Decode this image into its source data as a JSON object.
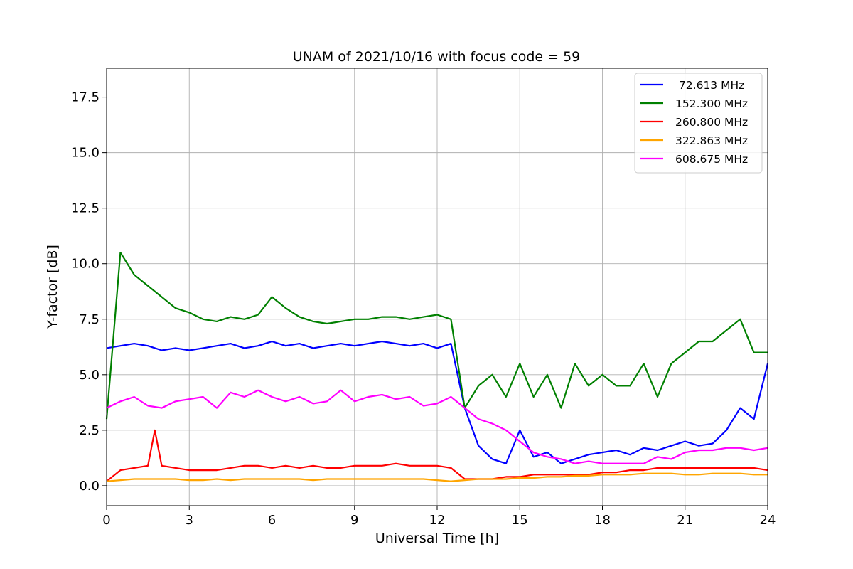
{
  "chart_data": {
    "type": "line",
    "title": "UNAM of 2021/10/16 with focus code = 59",
    "xlabel": "Universal Time [h]",
    "ylabel": "Y-factor [dB]",
    "xlim": [
      0,
      24
    ],
    "ylim": [
      -0.9,
      18.8
    ],
    "xticks": [
      0,
      3,
      6,
      9,
      12,
      15,
      18,
      21,
      24
    ],
    "xtick_labels": [
      "0",
      "3",
      "6",
      "9",
      "12",
      "15",
      "18",
      "21",
      "24"
    ],
    "yticks": [
      0,
      2.5,
      5,
      7.5,
      10,
      12.5,
      15,
      17.5
    ],
    "ytick_labels": [
      "0.0",
      "2.5",
      "5.0",
      "7.5",
      "10.0",
      "12.5",
      "15.0",
      "17.5"
    ],
    "grid": true,
    "legend_position": "top-right",
    "series": [
      {
        "name": " 72.613 MHz",
        "color": "#0000ff",
        "x": [
          0,
          0.5,
          1,
          1.5,
          2,
          2.5,
          3,
          3.5,
          4,
          4.5,
          5,
          5.5,
          6,
          6.5,
          7,
          7.5,
          8,
          8.5,
          9,
          9.5,
          10,
          10.5,
          11,
          11.5,
          12,
          12.5,
          13,
          13.5,
          14,
          14.5,
          15,
          15.5,
          16,
          16.5,
          17,
          17.5,
          18,
          18.5,
          19,
          19.5,
          20,
          20.5,
          21,
          21.5,
          22,
          22.5,
          23,
          23.5,
          24
        ],
        "y": [
          6.2,
          6.3,
          6.4,
          6.3,
          6.1,
          6.2,
          6.1,
          6.2,
          6.3,
          6.4,
          6.2,
          6.3,
          6.5,
          6.3,
          6.4,
          6.2,
          6.3,
          6.4,
          6.3,
          6.4,
          6.5,
          6.4,
          6.3,
          6.4,
          6.2,
          6.4,
          3.5,
          1.8,
          1.2,
          1.0,
          2.5,
          1.3,
          1.5,
          1.0,
          1.2,
          1.4,
          1.5,
          1.6,
          1.4,
          1.7,
          1.6,
          1.8,
          2.0,
          1.8,
          1.9,
          2.5,
          3.5,
          3.0,
          5.5
        ]
      },
      {
        "name": "152.300 MHz",
        "color": "#008000",
        "x": [
          0,
          0.5,
          1,
          1.5,
          2,
          2.5,
          3,
          3.5,
          4,
          4.5,
          5,
          5.5,
          6,
          6.5,
          7,
          7.5,
          8,
          8.5,
          9,
          9.5,
          10,
          10.5,
          11,
          11.5,
          12,
          12.5,
          13,
          13.5,
          14,
          14.5,
          15,
          15.5,
          16,
          16.5,
          17,
          17.5,
          18,
          18.5,
          19,
          19.5,
          20,
          20.5,
          21,
          21.5,
          22,
          22.5,
          23,
          23.5,
          24
        ],
        "y": [
          3.0,
          10.5,
          9.5,
          9.0,
          8.5,
          8.0,
          7.8,
          7.5,
          7.4,
          7.6,
          7.5,
          7.7,
          8.5,
          8.0,
          7.6,
          7.4,
          7.3,
          7.4,
          7.5,
          7.5,
          7.6,
          7.6,
          7.5,
          7.6,
          7.7,
          7.5,
          3.5,
          4.5,
          5.0,
          4.0,
          5.5,
          4.0,
          5.0,
          3.5,
          5.5,
          4.5,
          5.0,
          4.5,
          4.5,
          5.5,
          4.0,
          5.5,
          6.0,
          6.5,
          6.5,
          7.0,
          7.5,
          6.0,
          6.0
        ]
      },
      {
        "name": "260.800 MHz",
        "color": "#ff0000",
        "x": [
          0,
          0.5,
          1,
          1.5,
          1.75,
          2,
          2.5,
          3,
          3.5,
          4,
          4.5,
          5,
          5.5,
          6,
          6.5,
          7,
          7.5,
          8,
          8.5,
          9,
          9.5,
          10,
          10.5,
          11,
          11.5,
          12,
          12.5,
          13,
          13.5,
          14,
          14.5,
          15,
          15.5,
          16,
          16.5,
          17,
          17.5,
          18,
          18.5,
          19,
          19.5,
          20,
          20.5,
          21,
          21.5,
          22,
          22.5,
          23,
          23.5,
          24
        ],
        "y": [
          0.2,
          0.7,
          0.8,
          0.9,
          2.5,
          0.9,
          0.8,
          0.7,
          0.7,
          0.7,
          0.8,
          0.9,
          0.9,
          0.8,
          0.9,
          0.8,
          0.9,
          0.8,
          0.8,
          0.9,
          0.9,
          0.9,
          1.0,
          0.9,
          0.9,
          0.9,
          0.8,
          0.3,
          0.3,
          0.3,
          0.4,
          0.4,
          0.5,
          0.5,
          0.5,
          0.5,
          0.5,
          0.6,
          0.6,
          0.7,
          0.7,
          0.8,
          0.8,
          0.8,
          0.8,
          0.8,
          0.8,
          0.8,
          0.8,
          0.7
        ]
      },
      {
        "name": "322.863 MHz",
        "color": "#ffa500",
        "x": [
          0,
          0.5,
          1,
          1.5,
          2,
          2.5,
          3,
          3.5,
          4,
          4.5,
          5,
          5.5,
          6,
          6.5,
          7,
          7.5,
          8,
          8.5,
          9,
          9.5,
          10,
          10.5,
          11,
          11.5,
          12,
          12.5,
          13,
          13.5,
          14,
          14.5,
          15,
          15.5,
          16,
          16.5,
          17,
          17.5,
          18,
          18.5,
          19,
          19.5,
          20,
          20.5,
          21,
          21.5,
          22,
          22.5,
          23,
          23.5,
          24
        ],
        "y": [
          0.2,
          0.25,
          0.3,
          0.3,
          0.3,
          0.3,
          0.25,
          0.25,
          0.3,
          0.25,
          0.3,
          0.3,
          0.3,
          0.3,
          0.3,
          0.25,
          0.3,
          0.3,
          0.3,
          0.3,
          0.3,
          0.3,
          0.3,
          0.3,
          0.25,
          0.2,
          0.25,
          0.3,
          0.3,
          0.3,
          0.35,
          0.35,
          0.4,
          0.4,
          0.45,
          0.45,
          0.5,
          0.5,
          0.5,
          0.55,
          0.55,
          0.55,
          0.5,
          0.5,
          0.55,
          0.55,
          0.55,
          0.5,
          0.5
        ]
      },
      {
        "name": "608.675 MHz",
        "color": "#ff00ff",
        "x": [
          0,
          0.5,
          1,
          1.5,
          2,
          2.5,
          3,
          3.5,
          4,
          4.5,
          5,
          5.5,
          6,
          6.5,
          7,
          7.5,
          8,
          8.5,
          9,
          9.5,
          10,
          10.5,
          11,
          11.5,
          12,
          12.5,
          13,
          13.5,
          14,
          14.5,
          15,
          15.5,
          16,
          16.5,
          17,
          17.5,
          18,
          18.5,
          19,
          19.5,
          20,
          20.5,
          21,
          21.5,
          22,
          22.5,
          23,
          23.5,
          24
        ],
        "y": [
          3.5,
          3.8,
          4.0,
          3.6,
          3.5,
          3.8,
          3.9,
          4.0,
          3.5,
          4.2,
          4.0,
          4.3,
          4.0,
          3.8,
          4.0,
          3.7,
          3.8,
          4.3,
          3.8,
          4.0,
          4.1,
          3.9,
          4.0,
          3.6,
          3.7,
          4.0,
          3.5,
          3.0,
          2.8,
          2.5,
          2.0,
          1.5,
          1.3,
          1.2,
          1.0,
          1.1,
          1.0,
          1.0,
          1.0,
          1.0,
          1.3,
          1.2,
          1.5,
          1.6,
          1.6,
          1.7,
          1.7,
          1.6,
          1.7
        ]
      }
    ]
  }
}
